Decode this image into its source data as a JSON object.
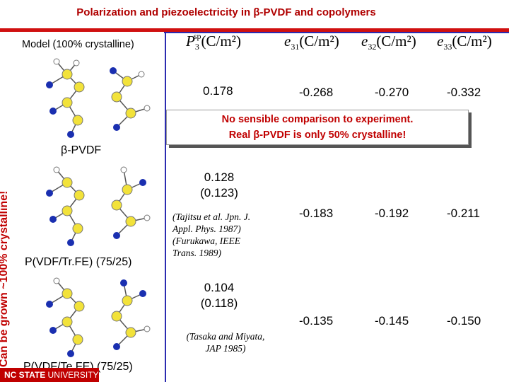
{
  "title": "Polarization and piezoelectricity in β-PVDF and copolymers",
  "model_label": "Model (100% crystalline)",
  "side_note": "Can be grown ~100% crystalline!",
  "headers": {
    "p": {
      "sym": "P",
      "sub": "3",
      "sup": "sp",
      "unit": "(C/m²)"
    },
    "e31": {
      "sym": "e",
      "sub": "31",
      "unit": "(C/m²)"
    },
    "e32": {
      "sym": "e",
      "sub": "32",
      "unit": "(C/m²)"
    },
    "e33": {
      "sym": "e",
      "sub": "33",
      "unit": "(C/m²)"
    }
  },
  "rows": [
    {
      "material": "β-PVDF",
      "p_model": "0.178",
      "p_exp": "",
      "e31": "-0.268",
      "e32": "-0.270",
      "e33": "-0.332"
    },
    {
      "material": "P(VDF/Tr.FE) (75/25)",
      "p_model": "0.128",
      "p_exp": "(0.123)",
      "cite": [
        "(Tajitsu et al. Jpn. J.",
        "Appl. Phys. 1987)",
        "(Furukawa, IEEE",
        "Trans. 1989)"
      ],
      "e31": "-0.183",
      "e32": "-0.192",
      "e33": "-0.211"
    },
    {
      "material": "P(VDF/Te.FE) (75/25)",
      "p_model": "0.104",
      "p_exp": "(0.118)",
      "cite": [
        "(Tasaka and Miyata,",
        "JAP 1985)"
      ],
      "e31": "-0.135",
      "e32": "-0.145",
      "e33": "-0.150"
    }
  ],
  "note": {
    "line1": "No sensible comparison to experiment.",
    "line2": "Real β-PVDF is only 50% crystalline!"
  },
  "footer": {
    "bold": "NC STATE",
    "rest": " UNIVERSITY"
  }
}
